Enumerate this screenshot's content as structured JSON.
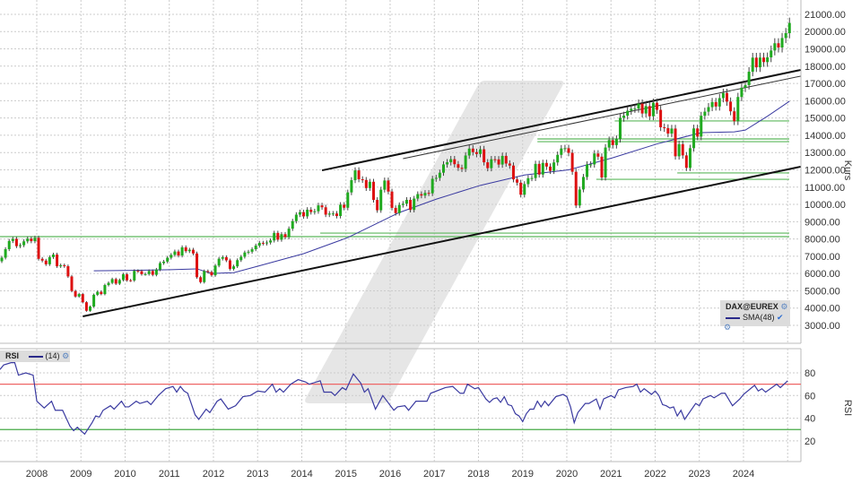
{
  "chart_data": {
    "type": "candlestick",
    "instrument": "DAX@EUREX",
    "y_axis_label": "Kurs",
    "y_ticks": [
      "3000.00",
      "4000.00",
      "5000.00",
      "6000.00",
      "7000.00",
      "8000.00",
      "9000.00",
      "10000.00",
      "11000.00",
      "12000.00",
      "13000.00",
      "14000.00",
      "15000.00",
      "16000.00",
      "17000.00",
      "18000.00",
      "19000.00",
      "20000.00",
      "21000.00"
    ],
    "ylim": [
      3000,
      21000
    ],
    "x_ticks": [
      "2008",
      "2009",
      "2010",
      "2011",
      "2012",
      "2013",
      "2014",
      "2015",
      "2016",
      "2017",
      "2018",
      "2019",
      "2020",
      "2021",
      "2022",
      "2023",
      "2024"
    ],
    "grid": true,
    "candle_interval": "monthly",
    "first_candle": "2007-03",
    "closes": [
      6917,
      7409,
      7883,
      8007,
      7584,
      7638,
      7862,
      8019,
      7871,
      8067,
      6851,
      6748,
      6535,
      6949,
      7097,
      6418,
      6479,
      6422,
      5831,
      4988,
      4669,
      4810,
      4338,
      3843,
      4085,
      4770,
      4941,
      4809,
      5332,
      5458,
      5675,
      5414,
      5625,
      5957,
      5608,
      5598,
      6154,
      6136,
      5964,
      5966,
      6148,
      5925,
      6229,
      6601,
      6688,
      6914,
      7077,
      7273,
      7041,
      7514,
      7294,
      7376,
      7159,
      5785,
      5502,
      6141,
      6089,
      5898,
      6458,
      6856,
      6947,
      6761,
      6264,
      6416,
      6772,
      6970,
      7216,
      7260,
      7405,
      7612,
      7776,
      7741,
      7795,
      7914,
      8349,
      7959,
      8276,
      8103,
      8594,
      9033,
      9406,
      9552,
      9306,
      9692,
      9556,
      9603,
      9943,
      9833,
      9407,
      9470,
      9474,
      9327,
      9980,
      9806,
      10694,
      11402,
      11966,
      11454,
      11414,
      10945,
      11309,
      10259,
      9660,
      10850,
      11382,
      10743,
      9798,
      9495,
      9966,
      10039,
      10263,
      9680,
      10337,
      10593,
      10511,
      10665,
      10640,
      11481,
      11535,
      11834,
      12313,
      12438,
      12615,
      12325,
      12118,
      12056,
      12829,
      13230,
      13024,
      12918,
      13189,
      12436,
      12097,
      12612,
      12605,
      12306,
      12806,
      12364,
      12247,
      11447,
      11257,
      10559,
      11173,
      11516,
      11526,
      12344,
      11727,
      12399,
      12189,
      11939,
      12428,
      12867,
      13236,
      13249,
      12982,
      11890,
      9936,
      10862,
      11587,
      12311,
      12313,
      12945,
      12761,
      11556,
      13291,
      13719,
      13433,
      13786,
      15008,
      15136,
      15421,
      15531,
      15544,
      15835,
      15261,
      15688,
      15100,
      15885,
      15471,
      14461,
      14415,
      14098,
      14388,
      12784,
      13484,
      12835,
      12114,
      13253,
      14397,
      13924,
      15128,
      15365,
      15629,
      15922,
      15664,
      16148,
      16447,
      15947,
      15387,
      14810,
      16215,
      16752,
      16904,
      17678,
      18492,
      17932,
      18498,
      18235,
      18509,
      18907,
      19325,
      19078,
      19627,
      19909,
      20500
    ],
    "up_color": "#1faa1f",
    "down_color": "#dd1111",
    "sma": {
      "label": "SMA(48)",
      "color": "#3a3aa0",
      "points": [
        [
          "2009-04",
          6160
        ],
        [
          "2010-01",
          6180
        ],
        [
          "2011-01",
          6220
        ],
        [
          "2011-08",
          6270
        ],
        [
          "2011-12",
          6000
        ],
        [
          "2012-06",
          6050
        ],
        [
          "2013-01",
          6450
        ],
        [
          "2014-01",
          7150
        ],
        [
          "2015-01",
          8080
        ],
        [
          "2016-03",
          9530
        ],
        [
          "2017-01",
          10300
        ],
        [
          "2018-01",
          11100
        ],
        [
          "2019-01",
          11700
        ],
        [
          "2020-01",
          12000
        ],
        [
          "2021-01",
          12700
        ],
        [
          "2022-01",
          13500
        ],
        [
          "2023-01",
          14150
        ],
        [
          "2023-10",
          14200
        ],
        [
          "2024-01",
          14300
        ],
        [
          "2024-07",
          15100
        ],
        [
          "2025-01",
          15970
        ]
      ]
    },
    "trendlines": [
      {
        "from": [
          "2014-06",
          11970
        ],
        "to": [
          "2025-04",
          17780
        ],
        "color": "#111111",
        "weight": "thick"
      },
      {
        "from": [
          "2016-04",
          12650
        ],
        "to": [
          "2025-04",
          17420
        ],
        "color": "#333333",
        "weight": "thin"
      },
      {
        "from": [
          "2009-01",
          3520
        ],
        "to": [
          "2025-04",
          12180
        ],
        "color": "#111111",
        "weight": "thick"
      }
    ],
    "horizontal_lines": [
      {
        "value": 14830,
        "from": "2021-02"
      },
      {
        "value": 13790,
        "from": "2019-05"
      },
      {
        "value": 13630,
        "from": "2019-05"
      },
      {
        "value": 11820,
        "from": "2022-07"
      },
      {
        "value": 11450,
        "from": "2020-09"
      },
      {
        "value": 8340,
        "from": "2014-06"
      },
      {
        "value": 8135,
        "from": "2007-03"
      }
    ],
    "hline_color": "#5cb85c",
    "rsi": {
      "label": "RSI",
      "period_label": "(14)",
      "y_axis_label": "RSI",
      "y_ticks": [
        "80",
        "60",
        "40",
        "20"
      ],
      "ylim": [
        10,
        90
      ],
      "overbought": 70,
      "oversold": 30,
      "overbought_color": "#ee6666",
      "oversold_color": "#44aa44",
      "color": "#3a3aa0",
      "points": [
        [
          "2007-03",
          83
        ],
        [
          "2007-04",
          87
        ],
        [
          "2007-06",
          89
        ],
        [
          "2007-07",
          89
        ],
        [
          "2007-08",
          78
        ],
        [
          "2007-09",
          79
        ],
        [
          "2007-10",
          80
        ],
        [
          "2007-12",
          78
        ],
        [
          "2008-01",
          55
        ],
        [
          "2008-03",
          49
        ],
        [
          "2008-05",
          55
        ],
        [
          "2008-06",
          47
        ],
        [
          "2008-08",
          47
        ],
        [
          "2008-10",
          33
        ],
        [
          "2008-11",
          29
        ],
        [
          "2008-12",
          32
        ],
        [
          "2009-02",
          26
        ],
        [
          "2009-04",
          36
        ],
        [
          "2009-05",
          42
        ],
        [
          "2009-06",
          41
        ],
        [
          "2009-07",
          47
        ],
        [
          "2009-09",
          51
        ],
        [
          "2009-10",
          48
        ],
        [
          "2009-12",
          55
        ],
        [
          "2010-01",
          50
        ],
        [
          "2010-02",
          50
        ],
        [
          "2010-04",
          55
        ],
        [
          "2010-05",
          53
        ],
        [
          "2010-06",
          54
        ],
        [
          "2010-07",
          55
        ],
        [
          "2010-08",
          52
        ],
        [
          "2010-10",
          60
        ],
        [
          "2010-12",
          66
        ],
        [
          "2011-02",
          68
        ],
        [
          "2011-03",
          63
        ],
        [
          "2011-04",
          68
        ],
        [
          "2011-05",
          64
        ],
        [
          "2011-06",
          62
        ],
        [
          "2011-08",
          43
        ],
        [
          "2011-09",
          39
        ],
        [
          "2011-11",
          48
        ],
        [
          "2011-12",
          45
        ],
        [
          "2012-02",
          55
        ],
        [
          "2012-03",
          57
        ],
        [
          "2012-05",
          48
        ],
        [
          "2012-07",
          51
        ],
        [
          "2012-09",
          59
        ],
        [
          "2012-11",
          60
        ],
        [
          "2013-01",
          64
        ],
        [
          "2013-03",
          63
        ],
        [
          "2013-05",
          70
        ],
        [
          "2013-06",
          63
        ],
        [
          "2013-07",
          66
        ],
        [
          "2013-08",
          63
        ],
        [
          "2013-10",
          70
        ],
        [
          "2013-12",
          74
        ],
        [
          "2014-01",
          73
        ],
        [
          "2014-02",
          72
        ],
        [
          "2014-03",
          70
        ],
        [
          "2014-06",
          73
        ],
        [
          "2014-07",
          63
        ],
        [
          "2014-09",
          63
        ],
        [
          "2014-10",
          60
        ],
        [
          "2014-12",
          67
        ],
        [
          "2015-01",
          65
        ],
        [
          "2015-02",
          72
        ],
        [
          "2015-03",
          79
        ],
        [
          "2015-05",
          71
        ],
        [
          "2015-06",
          63
        ],
        [
          "2015-07",
          66
        ],
        [
          "2015-09",
          48
        ],
        [
          "2015-11",
          60
        ],
        [
          "2016-02",
          47
        ],
        [
          "2016-03",
          50
        ],
        [
          "2016-05",
          51
        ],
        [
          "2016-06",
          47
        ],
        [
          "2016-08",
          55
        ],
        [
          "2016-11",
          55
        ],
        [
          "2016-12",
          62
        ],
        [
          "2017-04",
          67
        ],
        [
          "2017-06",
          68
        ],
        [
          "2017-08",
          62
        ],
        [
          "2017-09",
          62
        ],
        [
          "2017-10",
          70
        ],
        [
          "2017-12",
          66
        ],
        [
          "2018-01",
          67
        ],
        [
          "2018-03",
          57
        ],
        [
          "2018-04",
          54
        ],
        [
          "2018-05",
          57
        ],
        [
          "2018-06",
          58
        ],
        [
          "2018-07",
          54
        ],
        [
          "2018-08",
          59
        ],
        [
          "2018-09",
          52
        ],
        [
          "2018-10",
          51
        ],
        [
          "2018-11",
          44
        ],
        [
          "2018-12",
          42
        ],
        [
          "2019-01",
          37
        ],
        [
          "2019-02",
          44
        ],
        [
          "2019-03",
          48
        ],
        [
          "2019-04",
          48
        ],
        [
          "2019-05",
          55
        ],
        [
          "2019-06",
          50
        ],
        [
          "2019-07",
          55
        ],
        [
          "2019-08",
          51
        ],
        [
          "2019-10",
          59
        ],
        [
          "2019-12",
          61
        ],
        [
          "2020-01",
          59
        ],
        [
          "2020-02",
          50
        ],
        [
          "2020-03",
          36
        ],
        [
          "2020-04",
          45
        ],
        [
          "2020-06",
          53
        ],
        [
          "2020-07",
          53
        ],
        [
          "2020-09",
          57
        ],
        [
          "2020-10",
          48
        ],
        [
          "2020-11",
          57
        ],
        [
          "2021-01",
          60
        ],
        [
          "2021-02",
          58
        ],
        [
          "2021-03",
          65
        ],
        [
          "2021-05",
          67
        ],
        [
          "2021-07",
          68
        ],
        [
          "2021-08",
          70
        ],
        [
          "2021-09",
          63
        ],
        [
          "2021-10",
          66
        ],
        [
          "2021-12",
          61
        ],
        [
          "2022-01",
          64
        ],
        [
          "2022-02",
          60
        ],
        [
          "2022-03",
          52
        ],
        [
          "2022-04",
          51
        ],
        [
          "2022-05",
          49
        ],
        [
          "2022-06",
          50
        ],
        [
          "2022-07",
          42
        ],
        [
          "2022-08",
          47
        ],
        [
          "2022-09",
          39
        ],
        [
          "2022-12",
          53
        ],
        [
          "2023-01",
          51
        ],
        [
          "2023-02",
          57
        ],
        [
          "2023-04",
          60
        ],
        [
          "2023-05",
          58
        ],
        [
          "2023-07",
          62
        ],
        [
          "2023-08",
          62
        ],
        [
          "2023-10",
          51
        ],
        [
          "2023-12",
          57
        ],
        [
          "2024-01",
          61
        ],
        [
          "2024-04",
          69
        ],
        [
          "2024-05",
          64
        ],
        [
          "2024-06",
          66
        ],
        [
          "2024-07",
          63
        ],
        [
          "2024-10",
          70
        ],
        [
          "2024-11",
          67
        ],
        [
          "2024-12",
          70
        ],
        [
          "2025-01",
          73
        ]
      ]
    },
    "legend_placement": "bottom-right"
  },
  "legend": {
    "instrument": "DAX@EUREX",
    "sma": "SMA(48)",
    "rsi": "RSI",
    "rsi_period": "(14)"
  }
}
